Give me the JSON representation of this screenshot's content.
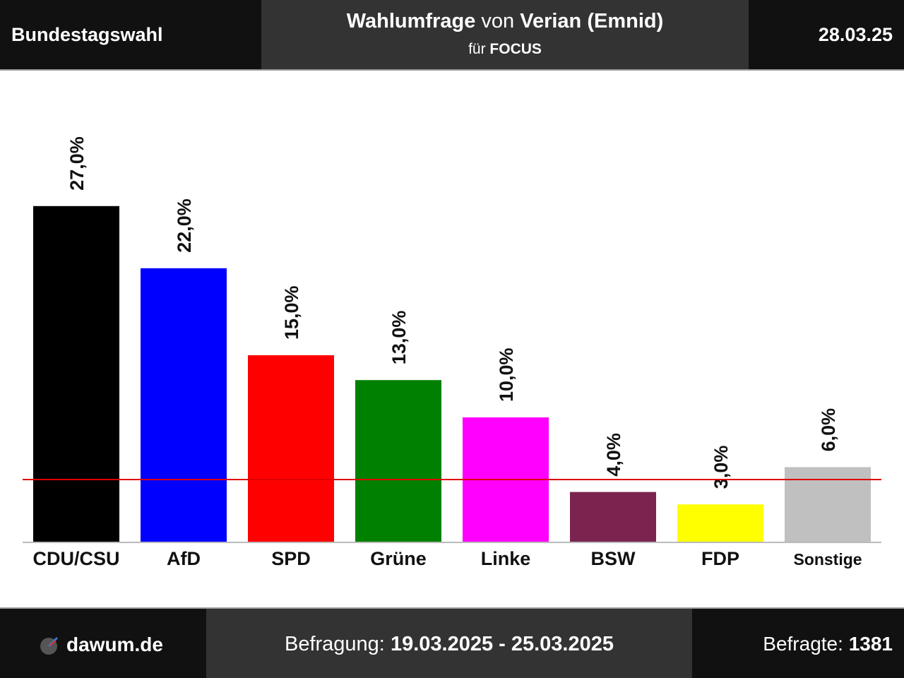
{
  "header": {
    "election": "Bundestagswahl",
    "poll_prefix": "Wahlumfrage",
    "poll_joiner": "von",
    "institute": "Verian (Emnid)",
    "client_prefix": "für",
    "client": "FOCUS",
    "date": "28.03.25"
  },
  "footer": {
    "brand": "dawum.de",
    "brand_icon": "dawum-logo-icon",
    "period_label": "Befragung:",
    "period": "19.03.2025 - 25.03.2025",
    "sample_label": "Befragte:",
    "sample": "1381"
  },
  "chart_data": {
    "type": "bar",
    "categories": [
      "CDU/CSU",
      "AfD",
      "SPD",
      "Grüne",
      "Linke",
      "BSW",
      "FDP",
      "Sonstige"
    ],
    "values": [
      27.0,
      22.0,
      15.0,
      13.0,
      10.0,
      4.0,
      3.0,
      6.0
    ],
    "value_labels": [
      "27,0%",
      "22,0%",
      "15,0%",
      "13,0%",
      "10,0%",
      "4,0%",
      "3,0%",
      "6,0%"
    ],
    "colors": [
      "#000000",
      "#0000ff",
      "#ff0000",
      "#008000",
      "#ff00ff",
      "#7b2450",
      "#ffff00",
      "#c0c0c0"
    ],
    "threshold": 5.0,
    "threshold_color": "#e00000",
    "ylim": [
      0,
      30
    ],
    "grid": false,
    "legend": "none",
    "title": "",
    "xlabel": "",
    "ylabel": ""
  }
}
